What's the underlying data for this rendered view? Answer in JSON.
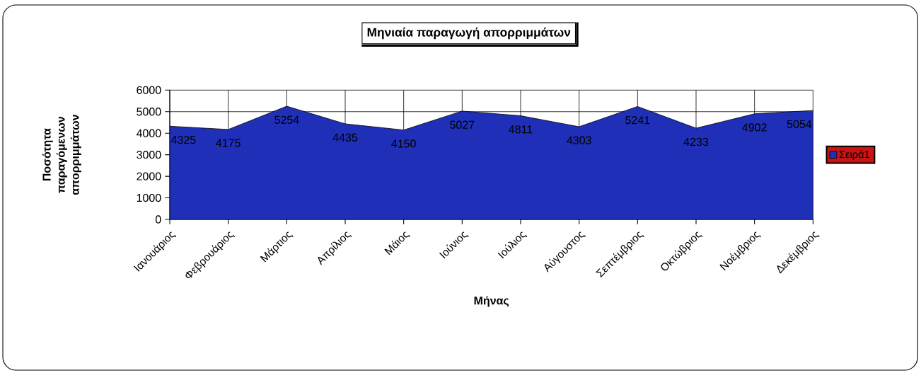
{
  "chart_data": {
    "type": "area",
    "title": "Μηνιαία παραγωγή απορριμμάτων",
    "xlabel": "Μήνας",
    "ylabel": "Ποσότητα παραγόμενων απορριμμάτων",
    "categories": [
      "Ιανουάριος",
      "Φεβρουάριος",
      "Μάρτιος",
      "Απρίλιος",
      "Μάιος",
      "Ιούνιος",
      "Ιούλιος",
      "Αύγουστος",
      "Σεπτέμβριος",
      "Οκτώβριος",
      "Νοέμβριος",
      "Δεκέμβριος"
    ],
    "series": [
      {
        "name": "Σειρά1",
        "color": "#1f2fb8",
        "values": [
          4325,
          4175,
          5254,
          4435,
          4150,
          5027,
          4811,
          4303,
          5241,
          4233,
          4902,
          5054
        ]
      }
    ],
    "ylim": [
      0,
      6000
    ],
    "yticks": [
      0,
      1000,
      2000,
      3000,
      4000,
      5000,
      6000
    ],
    "grid": true,
    "legend": "right",
    "data_labels": true
  }
}
